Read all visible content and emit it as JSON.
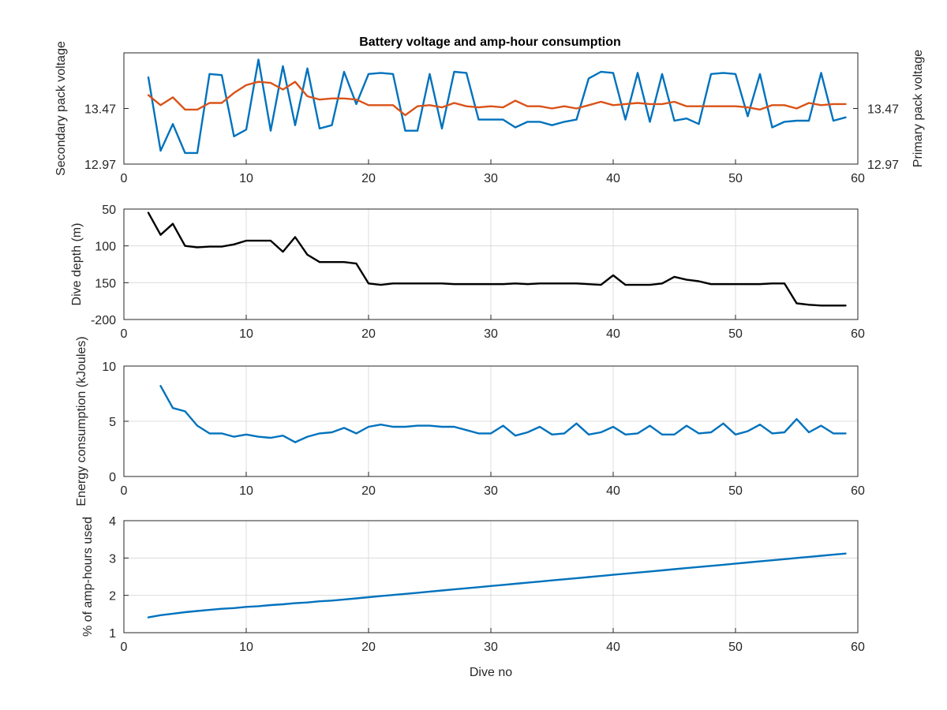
{
  "chart_data": [
    {
      "type": "line",
      "title": "Battery voltage and amp-hour consumption",
      "xlabel": "",
      "xlim": [
        0,
        60
      ],
      "xticks": [
        0,
        10,
        20,
        30,
        40,
        50,
        60
      ],
      "xtick_labels": [
        "0",
        "10",
        "20",
        "30",
        "40",
        "50",
        "60"
      ],
      "grid": false,
      "axes": [
        {
          "side": "left",
          "ylabel": "Secondary pack voltage",
          "ylim": [
            12.97,
            13.97
          ],
          "yticks": [
            12.97,
            13.47
          ],
          "ytick_labels": [
            "12.97",
            "13.47"
          ],
          "color": "#0072BD"
        },
        {
          "side": "right",
          "ylabel": "Primary pack voltage",
          "ylim": [
            12.97,
            13.97
          ],
          "yticks": [
            12.97,
            13.47
          ],
          "ytick_labels": [
            "12.97",
            "13.47"
          ],
          "color": "#D95319"
        }
      ],
      "series": [
        {
          "axis": "left",
          "color": "#0072BD",
          "x": [
            2,
            3,
            4,
            5,
            6,
            7,
            8,
            9,
            10,
            11,
            12,
            13,
            14,
            15,
            16,
            17,
            18,
            19,
            20,
            21,
            22,
            23,
            24,
            25,
            26,
            27,
            28,
            29,
            30,
            31,
            32,
            33,
            34,
            35,
            36,
            37,
            38,
            39,
            40,
            41,
            42,
            43,
            44,
            45,
            46,
            47,
            48,
            49,
            50,
            51,
            52,
            53,
            54,
            55,
            56,
            57,
            58,
            59
          ],
          "values": [
            13.75,
            13.09,
            13.33,
            13.07,
            13.07,
            13.78,
            13.77,
            13.22,
            13.28,
            13.91,
            13.27,
            13.85,
            13.32,
            13.83,
            13.29,
            13.32,
            13.8,
            13.51,
            13.78,
            13.79,
            13.78,
            13.27,
            13.27,
            13.78,
            13.29,
            13.8,
            13.79,
            13.37,
            13.37,
            13.37,
            13.3,
            13.35,
            13.35,
            13.32,
            13.35,
            13.37,
            13.74,
            13.8,
            13.79,
            13.37,
            13.79,
            13.35,
            13.78,
            13.36,
            13.38,
            13.33,
            13.78,
            13.79,
            13.78,
            13.4,
            13.78,
            13.3,
            13.35,
            13.36,
            13.36,
            13.79,
            13.36,
            13.39
          ]
        },
        {
          "axis": "right",
          "color": "#D95319",
          "x": [
            2,
            3,
            4,
            5,
            6,
            7,
            8,
            9,
            10,
            11,
            12,
            13,
            14,
            15,
            16,
            17,
            18,
            19,
            20,
            21,
            22,
            23,
            24,
            25,
            26,
            27,
            28,
            29,
            30,
            31,
            32,
            33,
            34,
            35,
            36,
            37,
            38,
            39,
            40,
            41,
            42,
            43,
            44,
            45,
            46,
            47,
            48,
            49,
            50,
            51,
            52,
            53,
            54,
            55,
            56,
            57,
            58,
            59
          ],
          "values": [
            13.59,
            13.5,
            13.57,
            13.46,
            13.46,
            13.52,
            13.52,
            13.61,
            13.68,
            13.71,
            13.7,
            13.64,
            13.71,
            13.58,
            13.55,
            13.56,
            13.56,
            13.55,
            13.5,
            13.5,
            13.5,
            13.41,
            13.49,
            13.5,
            13.48,
            13.52,
            13.49,
            13.48,
            13.49,
            13.48,
            13.54,
            13.49,
            13.49,
            13.47,
            13.49,
            13.47,
            13.5,
            13.53,
            13.5,
            13.51,
            13.52,
            13.51,
            13.51,
            13.53,
            13.49,
            13.49,
            13.49,
            13.49,
            13.49,
            13.48,
            13.46,
            13.5,
            13.5,
            13.47,
            13.52,
            13.5,
            13.51,
            13.51
          ]
        }
      ]
    },
    {
      "type": "line",
      "title": "",
      "xlabel": "",
      "ylabel": "Dive depth (m)",
      "xlim": [
        0,
        60
      ],
      "ylim": [
        -200,
        -50
      ],
      "xticks": [
        0,
        10,
        20,
        30,
        40,
        50,
        60
      ],
      "xtick_labels": [
        "0",
        "10",
        "20",
        "30",
        "40",
        "50",
        "60"
      ],
      "yticks": [
        -50,
        -100,
        -150,
        -200
      ],
      "ytick_labels": [
        "50",
        "100",
        "150",
        "-200"
      ],
      "grid": true,
      "series": [
        {
          "color": "#000000",
          "x": [
            2,
            3,
            4,
            5,
            6,
            7,
            8,
            9,
            10,
            11,
            12,
            13,
            14,
            15,
            16,
            17,
            18,
            19,
            20,
            21,
            22,
            23,
            24,
            25,
            26,
            27,
            28,
            29,
            30,
            31,
            32,
            33,
            34,
            35,
            36,
            37,
            38,
            39,
            40,
            41,
            42,
            43,
            44,
            45,
            46,
            47,
            48,
            49,
            50,
            51,
            52,
            53,
            54,
            55,
            56,
            57,
            58,
            59
          ],
          "values": [
            -55,
            -85,
            -70,
            -100,
            -102,
            -101,
            -101,
            -98,
            -93,
            -93,
            -93,
            -108,
            -88,
            -112,
            -122,
            -122,
            -122,
            -124,
            -151,
            -153,
            -151,
            -151,
            -151,
            -151,
            -151,
            -152,
            -152,
            -152,
            -152,
            -152,
            -151,
            -152,
            -151,
            -151,
            -151,
            -151,
            -152,
            -153,
            -140,
            -153,
            -153,
            -153,
            -151,
            -142,
            -146,
            -148,
            -152,
            -152,
            -152,
            -152,
            -152,
            -151,
            -151,
            -178,
            -180,
            -181,
            -181,
            -181
          ]
        }
      ]
    },
    {
      "type": "line",
      "title": "",
      "xlabel": "",
      "ylabel": "Energy consumption (kJoules)",
      "xlim": [
        0,
        60
      ],
      "ylim": [
        0,
        10
      ],
      "xticks": [
        0,
        10,
        20,
        30,
        40,
        50,
        60
      ],
      "xtick_labels": [
        "0",
        "10",
        "20",
        "30",
        "40",
        "50",
        "60"
      ],
      "yticks": [
        0,
        5,
        10
      ],
      "ytick_labels": [
        "0",
        "5",
        "10"
      ],
      "grid": true,
      "series": [
        {
          "color": "#0072BD",
          "x": [
            3,
            4,
            5,
            6,
            7,
            8,
            9,
            10,
            11,
            12,
            13,
            14,
            15,
            16,
            17,
            18,
            19,
            20,
            21,
            22,
            23,
            24,
            25,
            26,
            27,
            28,
            29,
            30,
            31,
            32,
            33,
            34,
            35,
            36,
            37,
            38,
            39,
            40,
            41,
            42,
            43,
            44,
            45,
            46,
            47,
            48,
            49,
            50,
            51,
            52,
            53,
            54,
            55,
            56,
            57,
            58,
            59
          ],
          "values": [
            8.2,
            6.2,
            5.9,
            4.6,
            3.9,
            3.9,
            3.6,
            3.8,
            3.6,
            3.5,
            3.7,
            3.1,
            3.6,
            3.9,
            4.0,
            4.4,
            3.9,
            4.5,
            4.7,
            4.5,
            4.5,
            4.6,
            4.6,
            4.5,
            4.5,
            4.2,
            3.9,
            3.9,
            4.6,
            3.7,
            4.0,
            4.5,
            3.8,
            3.9,
            4.8,
            3.8,
            4.0,
            4.5,
            3.8,
            3.9,
            4.6,
            3.8,
            3.8,
            4.6,
            3.9,
            4.0,
            4.8,
            3.8,
            4.1,
            4.7,
            3.9,
            4.0,
            5.2,
            4.0,
            4.6,
            3.9,
            3.9
          ]
        }
      ]
    },
    {
      "type": "line",
      "title": "",
      "xlabel": "Dive no",
      "ylabel": "% of amp-hours used",
      "xlim": [
        0,
        60
      ],
      "ylim": [
        1,
        4
      ],
      "xticks": [
        0,
        10,
        20,
        30,
        40,
        50,
        60
      ],
      "xtick_labels": [
        "0",
        "10",
        "20",
        "30",
        "40",
        "50",
        "60"
      ],
      "yticks": [
        1,
        2,
        3,
        4
      ],
      "ytick_labels": [
        "1",
        "2",
        "3",
        "4"
      ],
      "grid": true,
      "series": [
        {
          "color": "#0072BD",
          "x": [
            2,
            3,
            4,
            5,
            6,
            7,
            8,
            9,
            10,
            11,
            12,
            13,
            14,
            15,
            16,
            17,
            18,
            19,
            20,
            21,
            22,
            23,
            24,
            25,
            26,
            27,
            28,
            29,
            30,
            31,
            32,
            33,
            34,
            35,
            36,
            37,
            38,
            39,
            40,
            41,
            42,
            43,
            44,
            45,
            46,
            47,
            48,
            49,
            50,
            51,
            52,
            53,
            54,
            55,
            56,
            57,
            58,
            59
          ],
          "values": [
            1.41,
            1.47,
            1.51,
            1.55,
            1.58,
            1.61,
            1.64,
            1.66,
            1.69,
            1.71,
            1.74,
            1.76,
            1.79,
            1.81,
            1.84,
            1.86,
            1.89,
            1.92,
            1.95,
            1.98,
            2.01,
            2.04,
            2.07,
            2.1,
            2.13,
            2.16,
            2.19,
            2.22,
            2.25,
            2.28,
            2.31,
            2.34,
            2.37,
            2.4,
            2.43,
            2.46,
            2.49,
            2.52,
            2.55,
            2.58,
            2.61,
            2.64,
            2.67,
            2.7,
            2.73,
            2.76,
            2.79,
            2.82,
            2.85,
            2.88,
            2.91,
            2.94,
            2.97,
            3.0,
            3.03,
            3.06,
            3.09,
            3.12
          ]
        }
      ]
    }
  ]
}
